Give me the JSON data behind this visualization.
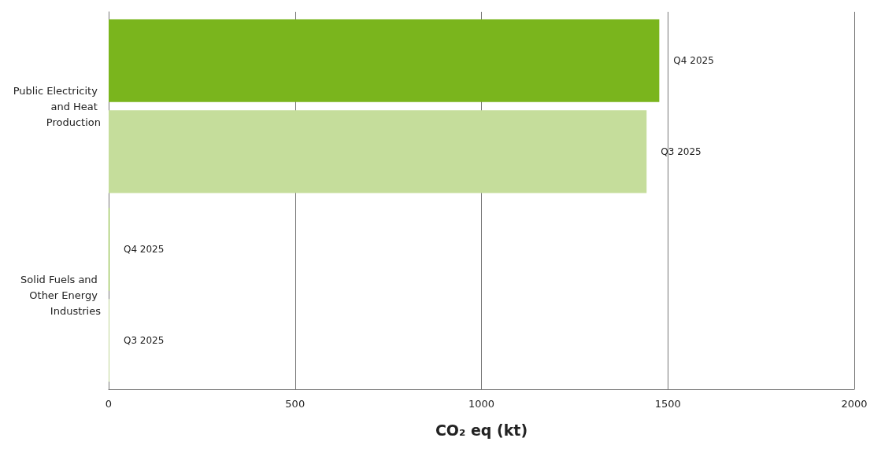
{
  "chart_data": {
    "type": "bar",
    "orientation": "horizontal",
    "xlabel": "CO₂ eq (kt)",
    "categories": [
      "Public Electricity and Heat Production",
      "Solid Fuels and Other Energy Industries"
    ],
    "series": [
      {
        "name": "Q4 2025",
        "color": "#7ab51d",
        "values": [
          1477,
          2
        ]
      },
      {
        "name": "Q3 2025",
        "color": "#c5dd9b",
        "values": [
          1443,
          2
        ]
      }
    ],
    "xlim": [
      0,
      2000
    ],
    "xticks": [
      0,
      500,
      1000,
      1500,
      2000
    ],
    "grid": "x",
    "legend": false
  }
}
